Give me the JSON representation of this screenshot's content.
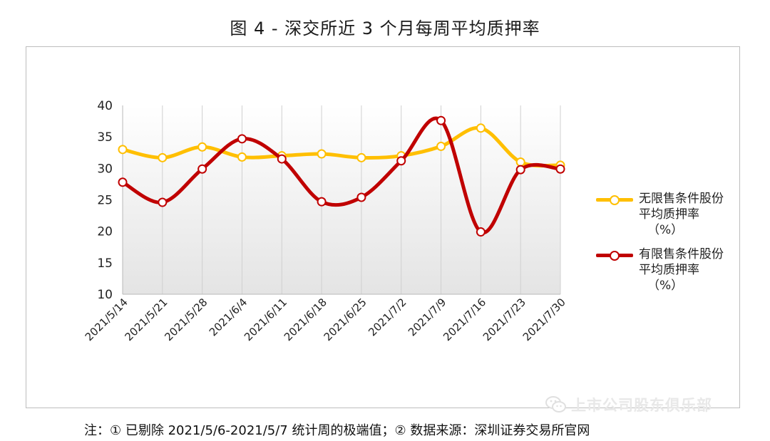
{
  "figure_title": "图 4 -  深交所近 3 个月每周平均质押率",
  "footnote": "注：①  已剔除 2021/5/6-2021/5/7 统计周的极端值；②  数据来源：深圳证券交易所官网",
  "watermark": {
    "text": "上市公司股东俱乐部",
    "icon": "wechat-icon"
  },
  "colors": {
    "series1": "#ffbf00",
    "series2": "#c00000",
    "grid": "#d0d0d0"
  },
  "chart_data": {
    "type": "line",
    "smooth": true,
    "title": "图 4 -  深交所近 3 个月每周平均质押率",
    "xlabel": "",
    "ylabel": "",
    "ylim": [
      10,
      40
    ],
    "yticks": [
      "10",
      "15",
      "20",
      "25",
      "30",
      "35",
      "40"
    ],
    "grid": "vertical",
    "legend_position": "right",
    "categories": [
      "2021/5/14",
      "2021/5/21",
      "2021/5/28",
      "2021/6/4",
      "2021/6/11",
      "2021/6/18",
      "2021/6/25",
      "2021/7/2",
      "2021/7/9",
      "2021/7/16",
      "2021/7/23",
      "2021/7/30"
    ],
    "series": [
      {
        "name": "无限售条件股份平均质押率",
        "unit": "（%）",
        "values": [
          33.0,
          31.7,
          33.4,
          31.8,
          32.0,
          32.3,
          31.7,
          32.0,
          33.5,
          36.4,
          31.0,
          30.5
        ]
      },
      {
        "name": "有限售条件股份平均质押率",
        "unit": "（%）",
        "values": [
          27.8,
          24.6,
          29.9,
          34.7,
          31.5,
          24.7,
          25.4,
          31.2,
          37.6,
          19.9,
          29.8,
          29.9
        ]
      }
    ]
  }
}
